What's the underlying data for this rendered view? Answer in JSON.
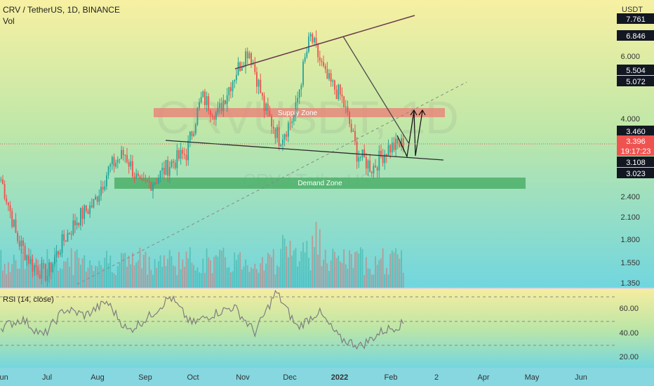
{
  "header": {
    "title": "CRV / TetherUS, 1D, BINANCE",
    "volume_label": "Vol"
  },
  "currency": "USDT",
  "watermark": {
    "main": "CRVUSDT, 1D",
    "sub": "CRV / TetherUS"
  },
  "zones": {
    "supply": {
      "label": "Supply Zone",
      "low": 3.85,
      "high": 4.15,
      "color": "#e8877a"
    },
    "demand": {
      "label": "Demand Zone",
      "low": 2.62,
      "high": 2.78,
      "color": "#4caf6a"
    }
  },
  "price_axis": {
    "ticks": [
      "6.000",
      "4.000",
      "2.400",
      "2.100",
      "1.800",
      "1.550",
      "1.350"
    ]
  },
  "price_badges": [
    {
      "label": "7.761",
      "bg": "#131722"
    },
    {
      "label": "6.846",
      "bg": "#131722"
    },
    {
      "label": "5.504",
      "bg": "#131722"
    },
    {
      "label": "5.072",
      "bg": "#131722"
    },
    {
      "label": "3.460",
      "bg": "#131722"
    },
    {
      "label": "3.396",
      "bg": "#ef5350"
    },
    {
      "label": "19:17:23",
      "bg": "#ef5350"
    },
    {
      "label": "3.108",
      "bg": "#131722"
    },
    {
      "label": "3.023",
      "bg": "#131722"
    }
  ],
  "rsi": {
    "label": "RSI (14, close)",
    "ticks": [
      "60.00",
      "40.00",
      "20.00"
    ]
  },
  "time_axis": {
    "labels": [
      "Jun",
      "Jul",
      "Aug",
      "Sep",
      "Oct",
      "Nov",
      "Dec",
      "2022",
      "Feb",
      "2",
      "Apr",
      "May",
      "Jun"
    ]
  },
  "colors": {
    "up": "#26a69a",
    "down": "#ef5350",
    "rsi_line": "#7e7e7e",
    "trend_line": "#6a3a4f"
  },
  "chart_data": {
    "type": "candlestick",
    "title": "CRV / TetherUS, 1D, BINANCE",
    "y_scale": "log",
    "ylim": [
      1.3,
      8.0
    ],
    "x_range": [
      "Jun",
      "Jun"
    ],
    "price_series_approx": [
      [
        "Jun",
        2.7
      ],
      [
        "Jul",
        1.85
      ],
      [
        "Jul",
        1.55
      ],
      [
        "Aug",
        1.45
      ],
      [
        "Aug",
        1.8
      ],
      [
        "Aug",
        2.1
      ],
      [
        "Sep",
        2.3
      ],
      [
        "Sep",
        2.9
      ],
      [
        "Sep",
        3.2
      ],
      [
        "Sep",
        2.55
      ],
      [
        "Oct",
        2.7
      ],
      [
        "Oct",
        3.0
      ],
      [
        "Oct",
        3.2
      ],
      [
        "Nov",
        4.6
      ],
      [
        "Nov",
        4.1
      ],
      [
        "Nov",
        5.2
      ],
      [
        "Nov",
        6.3
      ],
      [
        "Dec",
        4.3
      ],
      [
        "Dec",
        3.5
      ],
      [
        "Dec",
        4.1
      ],
      [
        "2022",
        6.8
      ],
      [
        "2022",
        5.2
      ],
      [
        "2022",
        4.6
      ],
      [
        "2022",
        3.2
      ],
      [
        "Feb",
        2.9
      ],
      [
        "Feb",
        3.3
      ],
      [
        "Feb",
        3.4
      ]
    ],
    "last_price": 3.396,
    "rsi_approx": [
      45,
      52,
      38,
      60,
      55,
      66,
      42,
      54,
      70,
      48,
      56,
      62,
      41,
      74,
      45,
      58,
      36,
      30,
      42,
      48
    ],
    "rsi_levels": [
      70,
      50,
      30
    ],
    "annotations": [
      "Supply Zone",
      "Demand Zone"
    ]
  }
}
